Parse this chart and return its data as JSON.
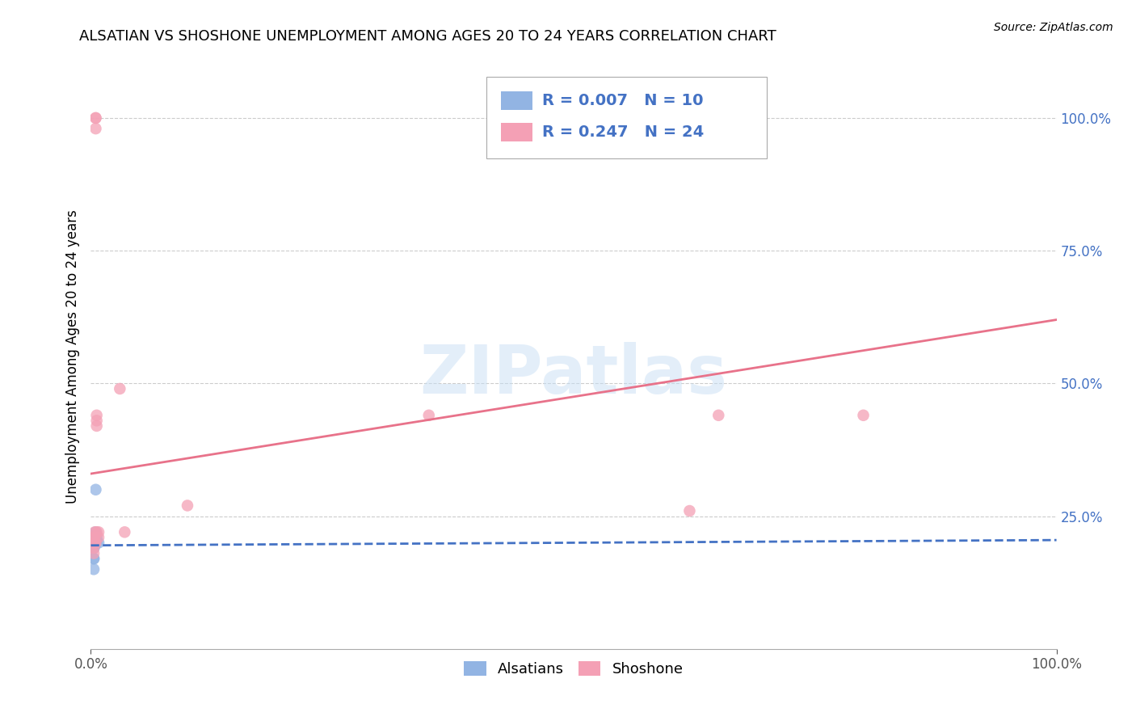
{
  "title": "ALSATIAN VS SHOSHONE UNEMPLOYMENT AMONG AGES 20 TO 24 YEARS CORRELATION CHART",
  "source": "Source: ZipAtlas.com",
  "ylabel": "Unemployment Among Ages 20 to 24 years",
  "alsatian_color": "#92b4e3",
  "shoshone_color": "#f4a0b5",
  "alsatian_line_color": "#4472c4",
  "shoshone_line_color": "#e8728a",
  "background_color": "#ffffff",
  "grid_color": "#cccccc",
  "alsatian_x": [
    0.003,
    0.003,
    0.003,
    0.003,
    0.003,
    0.005,
    0.005,
    0.006,
    0.006,
    0.008
  ],
  "alsatian_y": [
    0.19,
    0.19,
    0.17,
    0.17,
    0.15,
    0.3,
    0.22,
    0.21,
    0.2,
    0.2
  ],
  "shoshone_x": [
    0.003,
    0.003,
    0.003,
    0.003,
    0.004,
    0.004,
    0.004,
    0.005,
    0.005,
    0.005,
    0.005,
    0.006,
    0.006,
    0.006,
    0.006,
    0.008,
    0.008,
    0.03,
    0.035,
    0.65,
    0.8,
    0.62,
    0.35,
    0.1
  ],
  "shoshone_y": [
    0.21,
    0.2,
    0.19,
    0.18,
    0.22,
    0.21,
    0.2,
    1.0,
    1.0,
    0.98,
    0.2,
    0.44,
    0.43,
    0.42,
    0.22,
    0.22,
    0.21,
    0.49,
    0.22,
    0.44,
    0.44,
    0.26,
    0.44,
    0.27
  ],
  "alsatian_trendline_x": [
    0.0,
    1.0
  ],
  "alsatian_trendline_y": [
    0.195,
    0.205
  ],
  "shoshone_trendline_x": [
    0.0,
    1.0
  ],
  "shoshone_trendline_y": [
    0.33,
    0.62
  ],
  "xlim": [
    0.0,
    1.0
  ],
  "ylim": [
    0.0,
    1.1
  ],
  "watermark_text": "ZIPatlas",
  "marker_size": 110,
  "title_fontsize": 13,
  "axis_label_fontsize": 12,
  "tick_fontsize": 12,
  "legend_R_alsatian": "R = 0.007",
  "legend_N_alsatian": "N = 10",
  "legend_R_shoshone": "R = 0.247",
  "legend_N_shoshone": "N = 24"
}
